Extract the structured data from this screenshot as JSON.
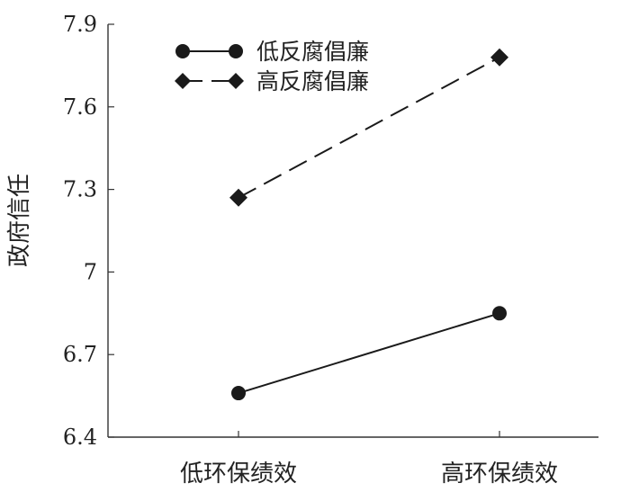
{
  "chart_data": {
    "type": "line",
    "title": "",
    "xlabel": "",
    "ylabel": "政府信任",
    "categories": [
      "低环保绩效",
      "高环保绩效"
    ],
    "ylim": [
      6.4,
      7.9
    ],
    "yticks": [
      "6.4",
      "6.7",
      "7",
      "7.3",
      "7.6",
      "7.9"
    ],
    "grid": false,
    "legend_position": "top-left",
    "series": [
      {
        "name": "低反腐倡廉",
        "values": [
          6.56,
          6.85
        ],
        "marker": "circle",
        "line_style": "solid"
      },
      {
        "name": "高反腐倡廉",
        "values": [
          7.27,
          7.78
        ],
        "marker": "diamond",
        "line_style": "dashed"
      }
    ],
    "colors": {
      "line": "#1a1a1a",
      "axis": "#333333"
    }
  }
}
